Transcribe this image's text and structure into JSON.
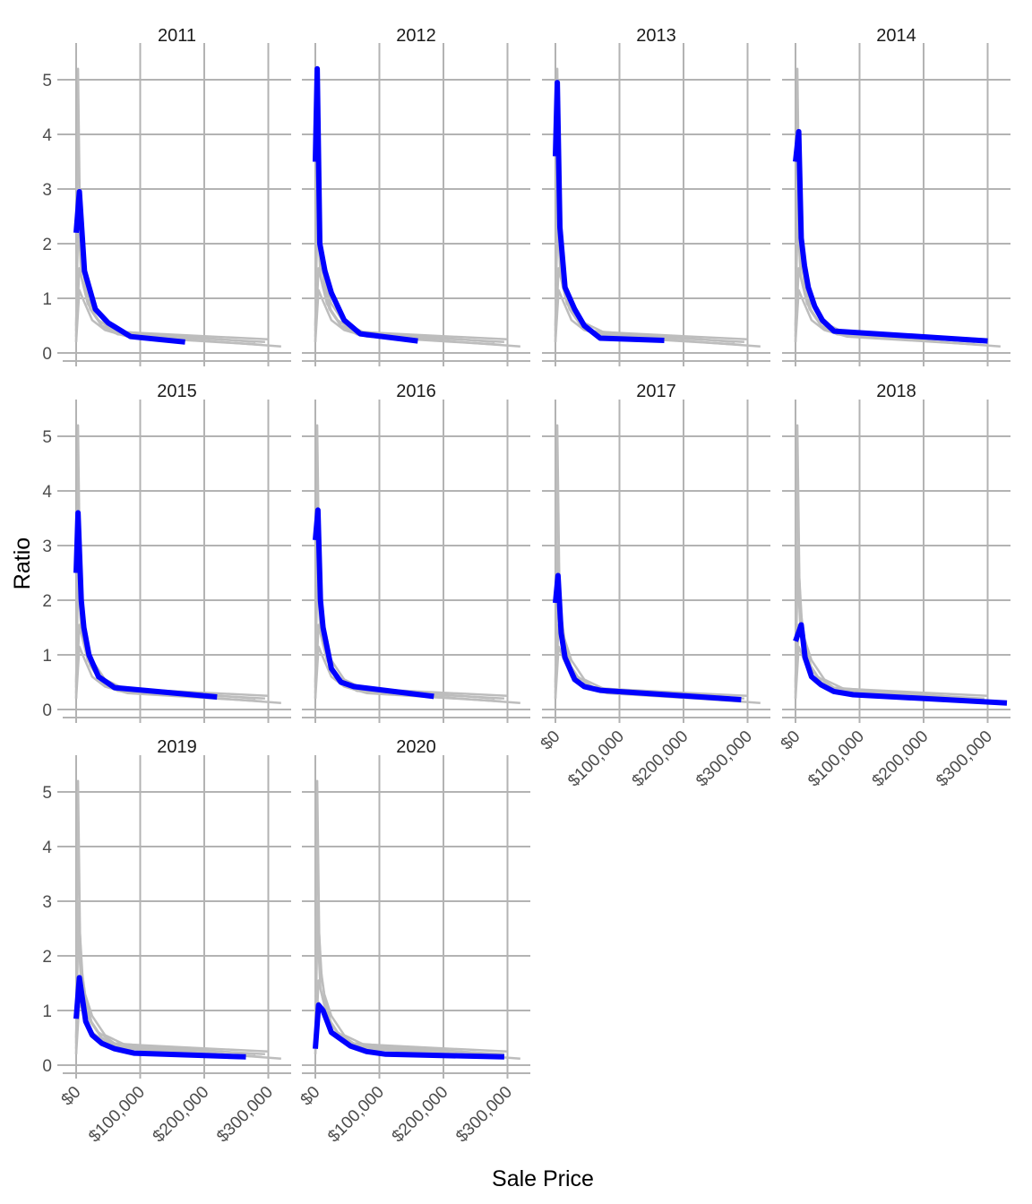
{
  "chart_data": {
    "type": "line",
    "layout": "facet_wrap",
    "xlabel": "Sale Price",
    "ylabel": "Ratio",
    "xlim": [
      0,
      330000
    ],
    "ylim": [
      0,
      5.2
    ],
    "x_ticks": [
      0,
      100000,
      200000,
      300000
    ],
    "x_tick_labels": [
      "$0",
      "$100,000",
      "$200,000",
      "$300,000"
    ],
    "y_ticks": [
      0,
      1,
      2,
      3,
      4,
      5
    ],
    "y_tick_labels": [
      "0",
      "1",
      "2",
      "3",
      "4",
      "5"
    ],
    "grid": true,
    "colors": {
      "highlight": "#0000ff",
      "background_lines": "#bdbdbd",
      "grid": "#b3b3b3"
    },
    "panels": [
      {
        "title": "2011",
        "series": [
          {
            "x": 0,
            "y": 2.2
          },
          {
            "x": 5000,
            "y": 2.95
          },
          {
            "x": 13000,
            "y": 1.5
          },
          {
            "x": 30000,
            "y": 0.8
          },
          {
            "x": 50000,
            "y": 0.55
          },
          {
            "x": 85000,
            "y": 0.3
          },
          {
            "x": 170000,
            "y": 0.2
          }
        ]
      },
      {
        "title": "2012",
        "series": [
          {
            "x": 0,
            "y": 3.5
          },
          {
            "x": 3000,
            "y": 5.2
          },
          {
            "x": 7000,
            "y": 2.0
          },
          {
            "x": 15000,
            "y": 1.5
          },
          {
            "x": 25000,
            "y": 1.1
          },
          {
            "x": 45000,
            "y": 0.6
          },
          {
            "x": 70000,
            "y": 0.35
          },
          {
            "x": 160000,
            "y": 0.22
          }
        ]
      },
      {
        "title": "2013",
        "series": [
          {
            "x": 0,
            "y": 3.6
          },
          {
            "x": 3000,
            "y": 4.95
          },
          {
            "x": 7000,
            "y": 2.3
          },
          {
            "x": 15000,
            "y": 1.2
          },
          {
            "x": 30000,
            "y": 0.8
          },
          {
            "x": 45000,
            "y": 0.5
          },
          {
            "x": 70000,
            "y": 0.27
          },
          {
            "x": 170000,
            "y": 0.23
          }
        ]
      },
      {
        "title": "2014",
        "series": [
          {
            "x": 0,
            "y": 3.5
          },
          {
            "x": 5000,
            "y": 4.05
          },
          {
            "x": 9000,
            "y": 2.1
          },
          {
            "x": 14000,
            "y": 1.6
          },
          {
            "x": 20000,
            "y": 1.2
          },
          {
            "x": 30000,
            "y": 0.85
          },
          {
            "x": 42000,
            "y": 0.6
          },
          {
            "x": 60000,
            "y": 0.4
          },
          {
            "x": 300000,
            "y": 0.22
          }
        ]
      },
      {
        "title": "2015",
        "series": [
          {
            "x": 0,
            "y": 2.5
          },
          {
            "x": 3000,
            "y": 3.6
          },
          {
            "x": 8000,
            "y": 2.0
          },
          {
            "x": 12000,
            "y": 1.5
          },
          {
            "x": 20000,
            "y": 1.0
          },
          {
            "x": 35000,
            "y": 0.6
          },
          {
            "x": 60000,
            "y": 0.4
          },
          {
            "x": 220000,
            "y": 0.23
          }
        ]
      },
      {
        "title": "2016",
        "series": [
          {
            "x": 0,
            "y": 3.1
          },
          {
            "x": 4000,
            "y": 3.65
          },
          {
            "x": 8000,
            "y": 2.0
          },
          {
            "x": 12000,
            "y": 1.5
          },
          {
            "x": 25000,
            "y": 0.75
          },
          {
            "x": 40000,
            "y": 0.5
          },
          {
            "x": 60000,
            "y": 0.42
          },
          {
            "x": 185000,
            "y": 0.24
          }
        ]
      },
      {
        "title": "2017",
        "series": [
          {
            "x": 0,
            "y": 1.95
          },
          {
            "x": 4000,
            "y": 2.45
          },
          {
            "x": 9000,
            "y": 1.4
          },
          {
            "x": 15000,
            "y": 0.95
          },
          {
            "x": 30000,
            "y": 0.55
          },
          {
            "x": 45000,
            "y": 0.42
          },
          {
            "x": 70000,
            "y": 0.35
          },
          {
            "x": 290000,
            "y": 0.18
          }
        ]
      },
      {
        "title": "2018",
        "series": [
          {
            "x": 0,
            "y": 1.25
          },
          {
            "x": 9000,
            "y": 1.55
          },
          {
            "x": 15000,
            "y": 0.95
          },
          {
            "x": 25000,
            "y": 0.6
          },
          {
            "x": 40000,
            "y": 0.45
          },
          {
            "x": 60000,
            "y": 0.33
          },
          {
            "x": 90000,
            "y": 0.27
          },
          {
            "x": 330000,
            "y": 0.12
          }
        ]
      },
      {
        "title": "2019",
        "series": [
          {
            "x": 0,
            "y": 0.85
          },
          {
            "x": 5000,
            "y": 1.6
          },
          {
            "x": 15000,
            "y": 0.8
          },
          {
            "x": 25000,
            "y": 0.55
          },
          {
            "x": 40000,
            "y": 0.4
          },
          {
            "x": 60000,
            "y": 0.3
          },
          {
            "x": 90000,
            "y": 0.22
          },
          {
            "x": 265000,
            "y": 0.15
          }
        ]
      },
      {
        "title": "2020",
        "series": [
          {
            "x": 0,
            "y": 0.3
          },
          {
            "x": 5000,
            "y": 1.1
          },
          {
            "x": 12000,
            "y": 1.0
          },
          {
            "x": 25000,
            "y": 0.6
          },
          {
            "x": 55000,
            "y": 0.35
          },
          {
            "x": 80000,
            "y": 0.25
          },
          {
            "x": 110000,
            "y": 0.2
          },
          {
            "x": 295000,
            "y": 0.15
          }
        ]
      }
    ],
    "background_series": [
      [
        {
          "x": 0,
          "y": 0.2
        },
        {
          "x": 3000,
          "y": 5.2
        },
        {
          "x": 6000,
          "y": 2.4
        },
        {
          "x": 10000,
          "y": 1.6
        },
        {
          "x": 15000,
          "y": 1.2
        },
        {
          "x": 25000,
          "y": 0.75
        },
        {
          "x": 40000,
          "y": 0.5
        },
        {
          "x": 65000,
          "y": 0.34
        },
        {
          "x": 320000,
          "y": 0.12
        }
      ],
      [
        {
          "x": 0,
          "y": 0.3
        },
        {
          "x": 5000,
          "y": 1.55
        },
        {
          "x": 12000,
          "y": 1.2
        },
        {
          "x": 22000,
          "y": 0.8
        },
        {
          "x": 40000,
          "y": 0.5
        },
        {
          "x": 70000,
          "y": 0.35
        },
        {
          "x": 295000,
          "y": 0.2
        }
      ],
      [
        {
          "x": 0,
          "y": 0.2
        },
        {
          "x": 5000,
          "y": 1.15
        },
        {
          "x": 12000,
          "y": 0.95
        },
        {
          "x": 25000,
          "y": 0.6
        },
        {
          "x": 45000,
          "y": 0.42
        },
        {
          "x": 80000,
          "y": 0.3
        },
        {
          "x": 290000,
          "y": 0.15
        }
      ],
      [
        {
          "x": 0,
          "y": 0.5
        },
        {
          "x": 4000,
          "y": 3.0
        },
        {
          "x": 8000,
          "y": 1.8
        },
        {
          "x": 14000,
          "y": 1.3
        },
        {
          "x": 25000,
          "y": 0.9
        },
        {
          "x": 45000,
          "y": 0.55
        },
        {
          "x": 75000,
          "y": 0.38
        },
        {
          "x": 300000,
          "y": 0.25
        }
      ],
      [
        {
          "x": 0,
          "y": 0.4
        },
        {
          "x": 3000,
          "y": 2.6
        },
        {
          "x": 8000,
          "y": 1.4
        },
        {
          "x": 18000,
          "y": 0.9
        },
        {
          "x": 35000,
          "y": 0.6
        },
        {
          "x": 60000,
          "y": 0.4
        },
        {
          "x": 280000,
          "y": 0.2
        }
      ]
    ]
  }
}
